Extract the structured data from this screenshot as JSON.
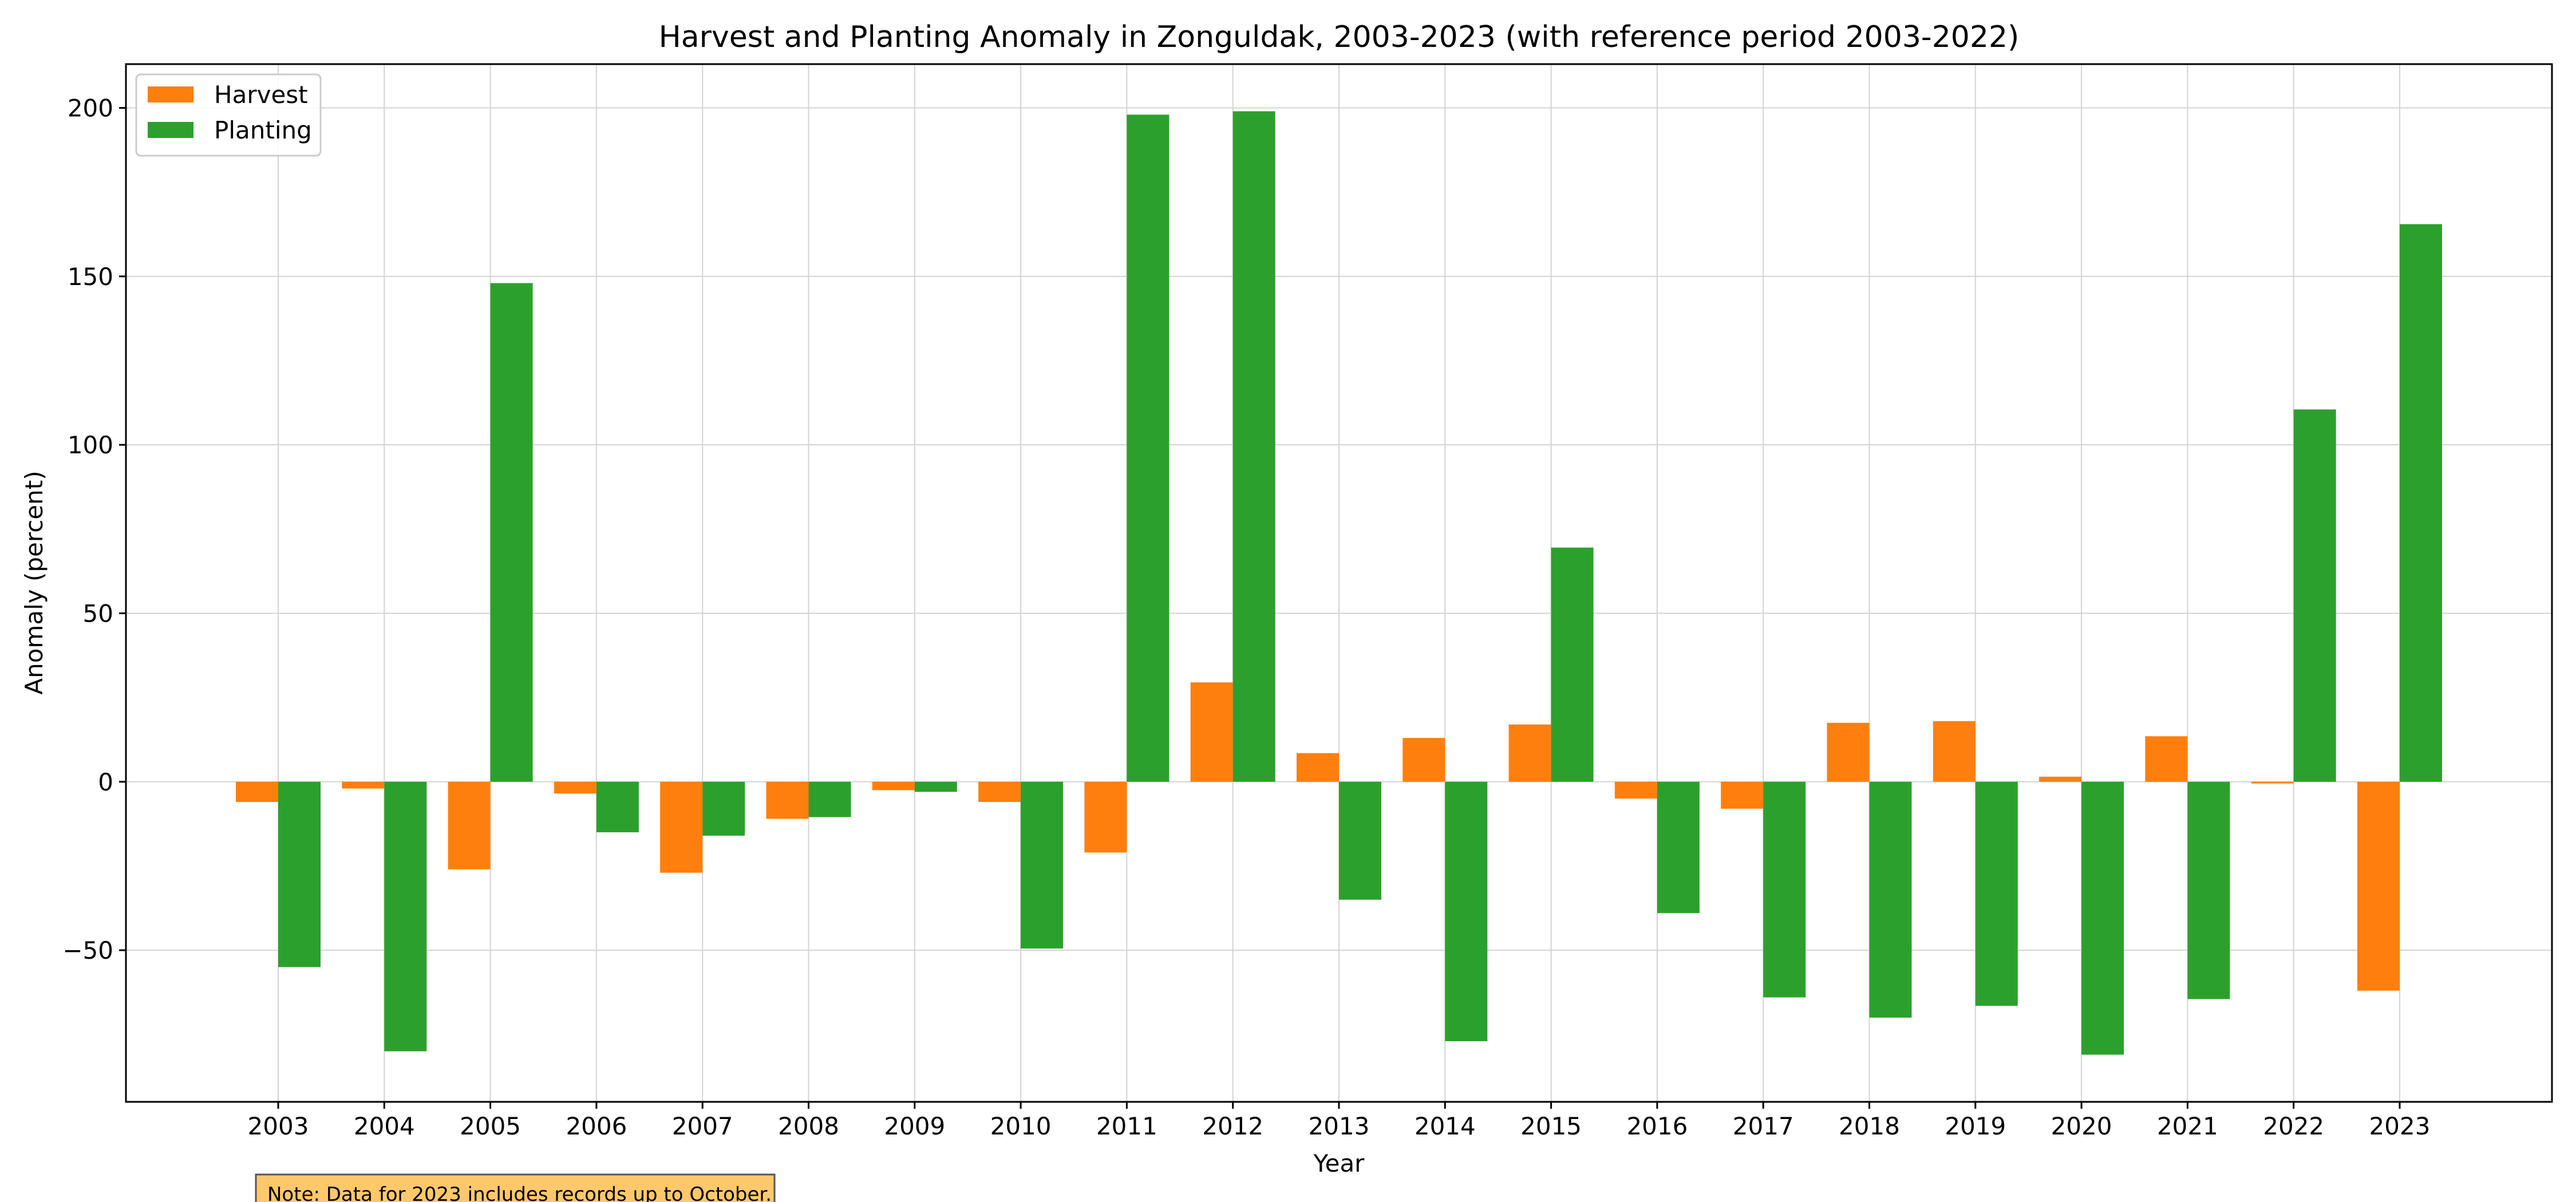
{
  "chart_data": {
    "type": "bar",
    "title": "Harvest and Planting Anomaly in Zonguldak, 2003-2023 (with reference period 2003-2022)",
    "xlabel": "Year",
    "ylabel": "Anomaly (percent)",
    "categories": [
      "2003",
      "2004",
      "2005",
      "2006",
      "2007",
      "2008",
      "2009",
      "2010",
      "2011",
      "2012",
      "2013",
      "2014",
      "2015",
      "2016",
      "2017",
      "2018",
      "2019",
      "2020",
      "2021",
      "2022",
      "2023"
    ],
    "series": [
      {
        "name": "Harvest",
        "color": "#ff7f0e",
        "values": [
          -6,
          -2,
          -26,
          -3.5,
          -27,
          -11,
          -2.5,
          -6,
          -21,
          29.5,
          8.5,
          13,
          17,
          -5,
          -8,
          17.5,
          18,
          1.5,
          13.5,
          -0.5,
          -62
        ]
      },
      {
        "name": "Planting",
        "color": "#2ca02c",
        "values": [
          -55,
          -80,
          148,
          -15,
          -16,
          -10.5,
          -3,
          -49.5,
          198,
          199,
          -35,
          -77,
          69.5,
          -39,
          -64,
          -70,
          -66.5,
          -81,
          -64.5,
          110.5,
          165.5
        ]
      }
    ],
    "ylim": [
      -95,
      213
    ],
    "yticks": [
      200,
      150,
      100,
      50,
      0,
      -50
    ],
    "ytick_labels": [
      "200",
      "150",
      "100",
      "50",
      "0",
      "−50"
    ],
    "grid": true,
    "legend": "top-left",
    "note": "Note: Data for 2023 includes records up to October."
  }
}
